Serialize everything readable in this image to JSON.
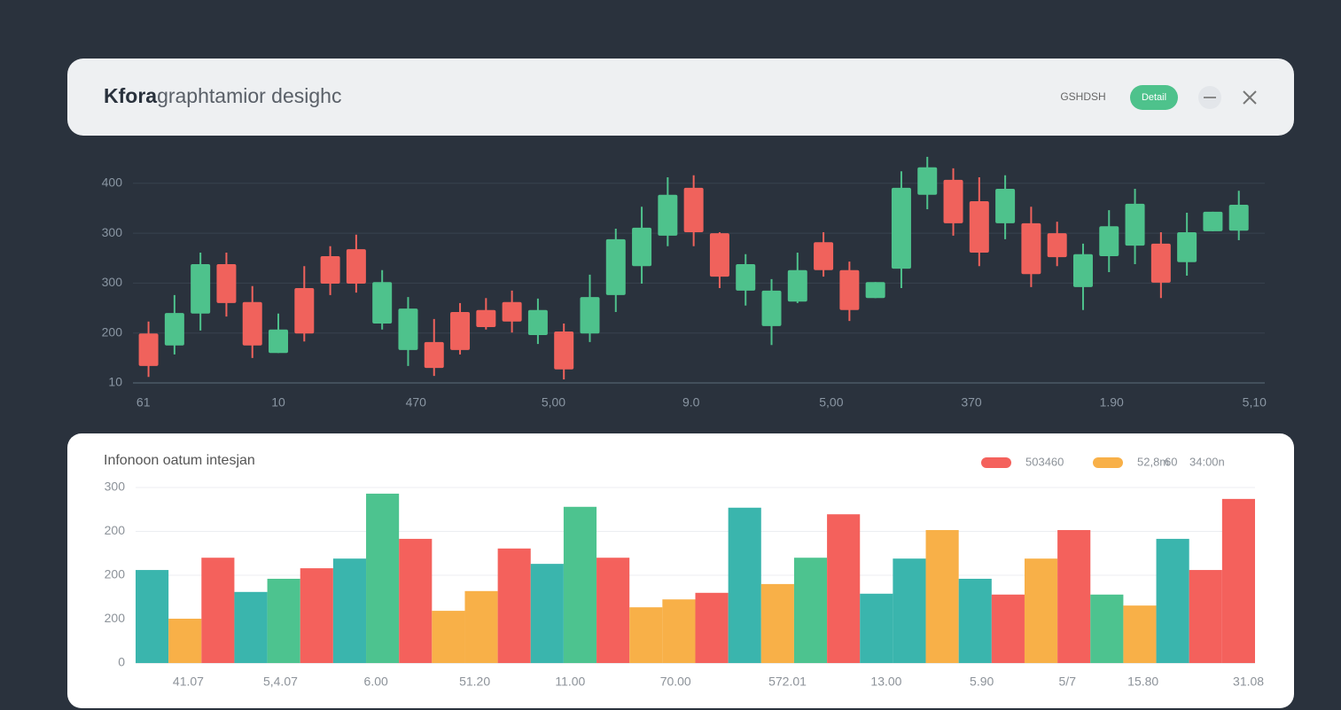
{
  "header": {
    "title_bold": "Kfora",
    "title_rest": "graphtamior desighc",
    "link": "GSHDSH",
    "button": "Detail"
  },
  "chart_data": [
    {
      "type": "candlestick",
      "x": [
        0,
        1,
        2,
        3,
        4,
        5,
        6,
        7,
        8,
        9,
        10,
        11,
        12,
        13,
        14,
        15,
        16,
        17,
        18,
        19,
        20,
        21,
        22,
        23,
        24,
        25,
        26,
        27,
        28,
        29,
        30,
        31,
        32,
        33,
        34,
        35,
        36,
        37,
        38,
        39,
        40,
        41,
        42
      ],
      "open": [
        99,
        75,
        139,
        238,
        162,
        60,
        190,
        254,
        268,
        119,
        66,
        82,
        142,
        146,
        162,
        96,
        103,
        99,
        176,
        234,
        295,
        391,
        300,
        185,
        114,
        163,
        282,
        226,
        170,
        229,
        377,
        407,
        364,
        320,
        320,
        300,
        192,
        254,
        275,
        279,
        242,
        304,
        305
      ],
      "close": [
        34,
        140,
        238,
        160,
        75,
        107,
        99,
        199,
        199,
        202,
        149,
        30,
        66,
        112,
        123,
        146,
        27,
        172,
        288,
        311,
        377,
        302,
        213,
        238,
        185,
        226,
        226,
        146,
        202,
        391,
        432,
        320,
        261,
        389,
        218,
        252,
        258,
        314,
        359,
        201,
        302,
        343,
        357
      ],
      "high": [
        123,
        176,
        261,
        261,
        194,
        139,
        234,
        274,
        297,
        226,
        172,
        128,
        160,
        170,
        185,
        169,
        119,
        217,
        309,
        353,
        412,
        416,
        302,
        258,
        208,
        261,
        302,
        243,
        202,
        424,
        453,
        430,
        412,
        416,
        353,
        323,
        279,
        346,
        389,
        302,
        341,
        343,
        385
      ],
      "low": [
        12,
        57,
        105,
        133,
        50,
        60,
        83,
        176,
        181,
        107,
        34,
        14,
        57,
        107,
        101,
        78,
        7,
        82,
        142,
        199,
        274,
        274,
        190,
        155,
        76,
        160,
        213,
        124,
        170,
        190,
        348,
        295,
        234,
        288,
        192,
        234,
        146,
        222,
        238,
        170,
        215,
        304,
        286
      ],
      "up_color": "#4ec28c",
      "down_color": "#f0625c",
      "xlim": [
        -0.6,
        43
      ],
      "xticks": [
        {
          "value": -0.2,
          "label": "61"
        },
        {
          "value": 5,
          "label": "10"
        },
        {
          "value": 10.3,
          "label": "470"
        },
        {
          "value": 15.6,
          "label": "5,00"
        },
        {
          "value": 20.9,
          "label": "9.0"
        },
        {
          "value": 26.3,
          "label": "5,00"
        },
        {
          "value": 31.7,
          "label": "370"
        },
        {
          "value": 37.1,
          "label": "1.90"
        },
        {
          "value": 42.6,
          "label": "5,10"
        }
      ],
      "ylim": [
        0,
        460
      ],
      "yticks": [
        400,
        300,
        {
          "value": 200,
          "label": "300"
        },
        {
          "value": 100,
          "label": "200"
        },
        {
          "value": 0,
          "label": "10"
        }
      ],
      "grid": true
    },
    {
      "type": "bar",
      "title": "Infonoon oatum intesjan",
      "legend": [
        {
          "label": "503460",
          "color": "#f4615c"
        },
        {
          "label": "52,8m",
          "color": "#f8b048"
        }
      ],
      "annotations": [
        "60",
        "34:00n"
      ],
      "x": [
        0,
        1,
        2,
        3,
        4,
        5,
        6,
        7,
        8,
        9,
        10,
        11,
        12,
        13,
        14,
        15,
        16,
        17,
        18,
        19,
        20,
        21,
        22,
        23,
        24,
        25,
        26,
        27,
        28,
        29,
        30,
        31,
        32,
        33
      ],
      "values": [
        212,
        101,
        240,
        162,
        192,
        216,
        238,
        386,
        283,
        119,
        164,
        261,
        226,
        356,
        240,
        127,
        145,
        160,
        354,
        180,
        240,
        339,
        158,
        238,
        303,
        192,
        156,
        238,
        303,
        156,
        131,
        283,
        212,
        374
      ],
      "colors": [
        "#3ab5ad",
        "#f8b048",
        "#f4615c",
        "#3ab5ad",
        "#4dc38f",
        "#f4615c",
        "#3ab5ad",
        "#4dc38f",
        "#f4615c",
        "#f8b048",
        "#f8b048",
        "#f4615c",
        "#3ab5ad",
        "#4dc38f",
        "#f4615c",
        "#f8b048",
        "#f8b048",
        "#f4615c",
        "#3ab5ad",
        "#f8b048",
        "#4dc38f",
        "#f4615c",
        "#3ab5ad",
        "#3ab5ad",
        "#f8b048",
        "#3ab5ad",
        "#f4615c",
        "#f8b048",
        "#f4615c",
        "#4dc38f",
        "#f8b048",
        "#3ab5ad",
        "#f4615c",
        "#f4615c"
      ],
      "xlim": [
        -0.5,
        33.5
      ],
      "xticks": [
        {
          "value": 1.1,
          "label": "41.07"
        },
        {
          "value": 3.9,
          "label": "5,4.07"
        },
        {
          "value": 6.8,
          "label": "6.00"
        },
        {
          "value": 9.8,
          "label": "51.20"
        },
        {
          "value": 12.7,
          "label": "11.00"
        },
        {
          "value": 15.9,
          "label": "70.00"
        },
        {
          "value": 19.3,
          "label": "572.01"
        },
        {
          "value": 22.3,
          "label": "13.00"
        },
        {
          "value": 25.2,
          "label": "5.90"
        },
        {
          "value": 27.8,
          "label": "5/7"
        },
        {
          "value": 30.1,
          "label": "15.80"
        },
        {
          "value": 33.3,
          "label": "31.08"
        }
      ],
      "ylim": [
        0,
        400
      ],
      "yticks": [
        {
          "value": 400,
          "label": "300"
        },
        {
          "value": 300,
          "label": "200"
        },
        200,
        {
          "value": 100,
          "label": "200"
        },
        0
      ],
      "grid": true
    }
  ]
}
